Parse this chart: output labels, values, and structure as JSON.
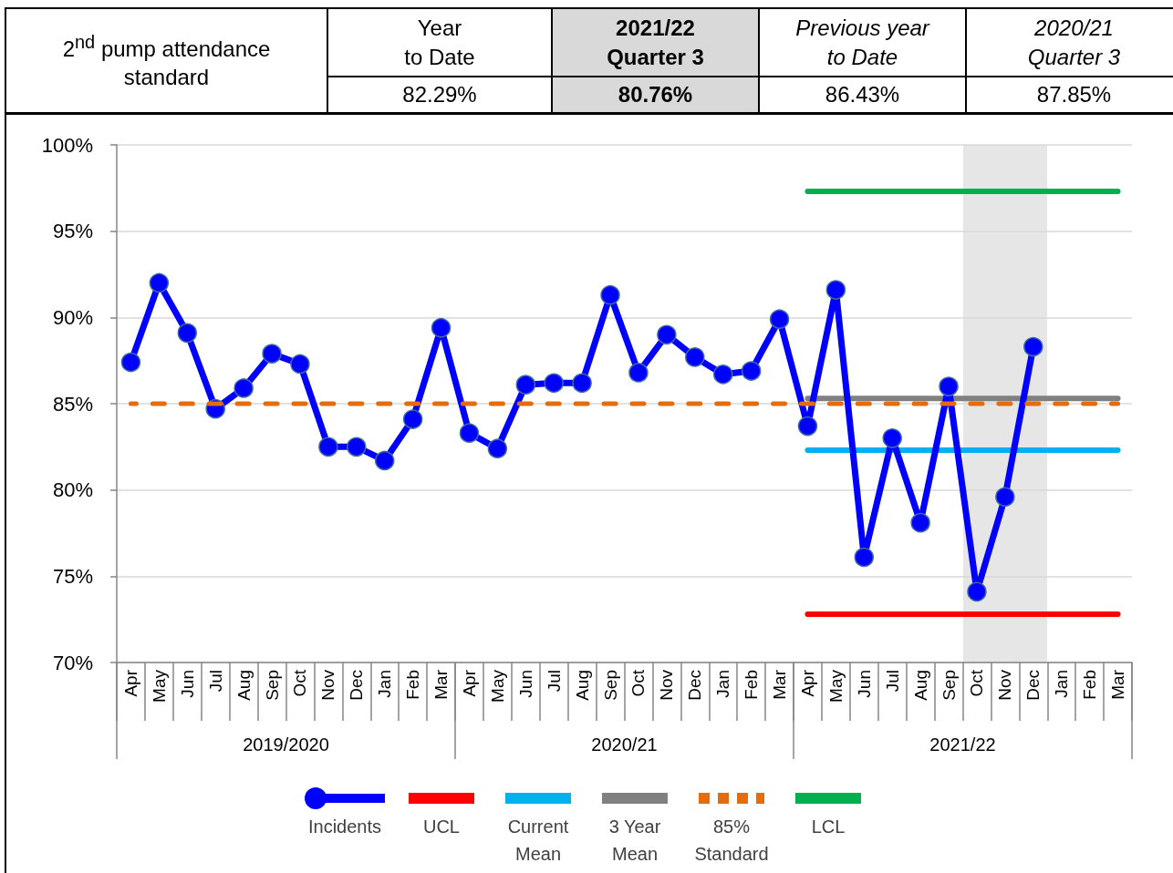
{
  "chart_data": {
    "type": "line",
    "title": "2$^{nd}$ pump attendance standard",
    "annotations": [
      "Year\nto Date",
      "2021/22\nQuarter 3",
      "Previous year\nto Date",
      "2020/21\nQuarter 3",
      "82.29%",
      "80.76%",
      "86.43%",
      "87.85%",
      "2019/2020",
      "2020/21",
      "2021/22"
    ],
    "categories": [
      "Apr",
      "May",
      "Jun",
      "Jul",
      "Aug",
      "Sep",
      "Oct",
      "Nov",
      "Dec",
      "Jan",
      "Feb",
      "Mar",
      "Apr",
      "May",
      "Jun",
      "Jul",
      "Aug",
      "Sep",
      "Oct",
      "Nov",
      "Dec",
      "Jan",
      "Feb",
      "Mar",
      "Apr",
      "May",
      "Jun",
      "Jul",
      "Aug",
      "Sep",
      "Oct",
      "Nov",
      "Dec",
      "Jan",
      "Feb",
      "Mar"
    ],
    "series": [
      {
        "name": "Incidents",
        "color": "#0000ff",
        "marker": "circle",
        "values": [
          87.4,
          92.0,
          89.1,
          84.7,
          85.9,
          87.9,
          87.3,
          82.5,
          82.5,
          81.7,
          84.1,
          89.4,
          83.3,
          82.4,
          86.1,
          86.2,
          86.2,
          91.3,
          86.8,
          89.0,
          87.7,
          86.7,
          86.9,
          89.9,
          83.7,
          91.6,
          76.1,
          83.0,
          78.1,
          86.0,
          74.1,
          79.6,
          88.3,
          null,
          null,
          null
        ]
      },
      {
        "name": "UCL",
        "color": "#ff0000",
        "values": [
          null,
          null,
          null,
          null,
          null,
          null,
          null,
          null,
          null,
          null,
          null,
          null,
          null,
          null,
          null,
          null,
          null,
          null,
          null,
          null,
          null,
          null,
          null,
          null,
          72.8,
          72.8,
          72.8,
          72.8,
          72.8,
          72.8,
          72.8,
          72.8,
          72.8,
          72.8,
          72.8,
          72.8
        ]
      },
      {
        "name": "Current Mean",
        "color": "#00b0f0",
        "values": [
          null,
          null,
          null,
          null,
          null,
          null,
          null,
          null,
          null,
          null,
          null,
          null,
          null,
          null,
          null,
          null,
          null,
          null,
          null,
          null,
          null,
          null,
          null,
          null,
          82.3,
          82.3,
          82.3,
          82.3,
          82.3,
          82.3,
          82.3,
          82.3,
          82.3,
          82.3,
          82.3,
          82.3
        ]
      },
      {
        "name": "3 Year Mean",
        "color": "#808080",
        "values": [
          null,
          null,
          null,
          null,
          null,
          null,
          null,
          null,
          null,
          null,
          null,
          null,
          null,
          null,
          null,
          null,
          null,
          null,
          null,
          null,
          null,
          null,
          null,
          null,
          85.3,
          85.3,
          85.3,
          85.3,
          85.3,
          85.3,
          85.3,
          85.3,
          85.3,
          85.3,
          85.3,
          85.3
        ]
      },
      {
        "name": "85% Standard",
        "color": "#e46c0a",
        "line_style": "dashed",
        "values": [
          85,
          85,
          85,
          85,
          85,
          85,
          85,
          85,
          85,
          85,
          85,
          85,
          85,
          85,
          85,
          85,
          85,
          85,
          85,
          85,
          85,
          85,
          85,
          85,
          85,
          85,
          85,
          85,
          85,
          85,
          85,
          85,
          85,
          85,
          85,
          85
        ]
      },
      {
        "name": "LCL",
        "color": "#00b050",
        "values": [
          null,
          null,
          null,
          null,
          null,
          null,
          null,
          null,
          null,
          null,
          null,
          null,
          null,
          null,
          null,
          null,
          null,
          null,
          null,
          null,
          null,
          null,
          null,
          null,
          97.3,
          97.3,
          97.3,
          97.3,
          97.3,
          97.3,
          97.3,
          97.3,
          97.3,
          97.3,
          97.3,
          97.3
        ]
      }
    ],
    "ylim": [
      70,
      100
    ],
    "yticks": [
      {
        "value": 70,
        "label": "70%"
      },
      {
        "value": 75,
        "label": "75%"
      },
      {
        "value": 80,
        "label": "80%"
      },
      {
        "value": 85,
        "label": "85%"
      },
      {
        "value": 90,
        "label": "90%"
      },
      {
        "value": 95,
        "label": "95%"
      },
      {
        "value": 100,
        "label": "100%"
      }
    ],
    "grid": "y",
    "legend": "bottom"
  }
}
